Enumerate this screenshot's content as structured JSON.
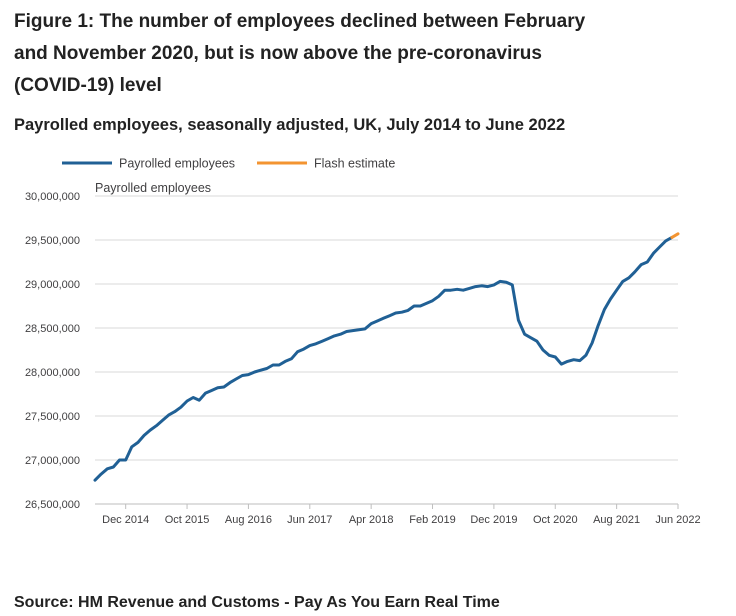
{
  "header": {
    "title": "Figure 1: The number of employees declined between February and November 2020, but is now above the pre-coronavirus (COVID-19) level",
    "subtitle": "Payrolled employees, seasonally adjusted, UK, July 2014 to June 2022"
  },
  "footer": {
    "source": "Source: HM Revenue and Customs - Pay As You Earn Real Time"
  },
  "chart_data": {
    "type": "line",
    "title": "Figure 1: The number of employees declined between February and November 2020, but is now above the pre-coronavirus (COVID-19) level",
    "subtitle": "Payrolled employees, seasonally adjusted, UK, July 2014 to June 2022",
    "ylabel": "Payrolled employees",
    "xlabel": "",
    "ylim": [
      26500000,
      30000000
    ],
    "y_ticks": [
      26500000,
      27000000,
      27500000,
      28000000,
      28500000,
      29000000,
      29500000,
      30000000
    ],
    "y_tick_labels": [
      "26,500,000",
      "27,000,000",
      "27,500,000",
      "28,000,000",
      "28,500,000",
      "29,000,000",
      "29,500,000",
      "30,000,000"
    ],
    "x_ticks": [
      "2014-12",
      "2015-10",
      "2016-08",
      "2017-06",
      "2018-04",
      "2019-02",
      "2019-12",
      "2020-10",
      "2021-08",
      "2022-06"
    ],
    "x_tick_labels": [
      "Dec 2014",
      "Oct 2015",
      "Aug 2016",
      "Jun 2017",
      "Apr 2018",
      "Feb 2019",
      "Dec 2019",
      "Oct 2020",
      "Aug 2021",
      "Jun 2022"
    ],
    "x_range": [
      "2014-07",
      "2022-06"
    ],
    "grid": true,
    "legend_position": "top-left",
    "colors": {
      "payrolled": "#206095",
      "flash": "#f39431",
      "grid": "#d9d9d9",
      "axis": "#bebebe",
      "text": "#414042"
    },
    "series": [
      {
        "name": "Payrolled employees",
        "color": "#206095",
        "x": [
          "2014-07",
          "2014-08",
          "2014-09",
          "2014-10",
          "2014-11",
          "2014-12",
          "2015-01",
          "2015-02",
          "2015-03",
          "2015-04",
          "2015-05",
          "2015-06",
          "2015-07",
          "2015-08",
          "2015-09",
          "2015-10",
          "2015-11",
          "2015-12",
          "2016-01",
          "2016-02",
          "2016-03",
          "2016-04",
          "2016-05",
          "2016-06",
          "2016-07",
          "2016-08",
          "2016-09",
          "2016-10",
          "2016-11",
          "2016-12",
          "2017-01",
          "2017-02",
          "2017-03",
          "2017-04",
          "2017-05",
          "2017-06",
          "2017-07",
          "2017-08",
          "2017-09",
          "2017-10",
          "2017-11",
          "2017-12",
          "2018-01",
          "2018-02",
          "2018-03",
          "2018-04",
          "2018-05",
          "2018-06",
          "2018-07",
          "2018-08",
          "2018-09",
          "2018-10",
          "2018-11",
          "2018-12",
          "2019-01",
          "2019-02",
          "2019-03",
          "2019-04",
          "2019-05",
          "2019-06",
          "2019-07",
          "2019-08",
          "2019-09",
          "2019-10",
          "2019-11",
          "2019-12",
          "2020-01",
          "2020-02",
          "2020-03",
          "2020-04",
          "2020-05",
          "2020-06",
          "2020-07",
          "2020-08",
          "2020-09",
          "2020-10",
          "2020-11",
          "2020-12",
          "2021-01",
          "2021-02",
          "2021-03",
          "2021-04",
          "2021-05",
          "2021-06",
          "2021-07",
          "2021-08",
          "2021-09",
          "2021-10",
          "2021-11",
          "2021-12",
          "2022-01",
          "2022-02",
          "2022-03",
          "2022-04",
          "2022-05"
        ],
        "values": [
          26770000,
          26840000,
          26900000,
          26920000,
          27000000,
          27000000,
          27150000,
          27200000,
          27280000,
          27340000,
          27390000,
          27450000,
          27510000,
          27550000,
          27600000,
          27670000,
          27710000,
          27680000,
          27760000,
          27790000,
          27820000,
          27830000,
          27880000,
          27920000,
          27960000,
          27970000,
          28000000,
          28020000,
          28040000,
          28080000,
          28080000,
          28120000,
          28150000,
          28230000,
          28260000,
          28300000,
          28320000,
          28350000,
          28380000,
          28410000,
          28430000,
          28460000,
          28470000,
          28480000,
          28490000,
          28550000,
          28580000,
          28610000,
          28640000,
          28670000,
          28680000,
          28700000,
          28750000,
          28750000,
          28780000,
          28810000,
          28860000,
          28930000,
          28930000,
          28940000,
          28930000,
          28950000,
          28970000,
          28980000,
          28970000,
          28990000,
          29030000,
          29020000,
          28990000,
          28590000,
          28430000,
          28390000,
          28350000,
          28250000,
          28190000,
          28170000,
          28090000,
          28120000,
          28140000,
          28130000,
          28190000,
          28330000,
          28530000,
          28710000,
          28830000,
          28930000,
          29030000,
          29070000,
          29140000,
          29220000,
          29250000,
          29350000,
          29420000,
          29490000,
          29530000
        ]
      },
      {
        "name": "Flash estimate",
        "color": "#f39431",
        "x": [
          "2022-05",
          "2022-06"
        ],
        "values": [
          29530000,
          29570000
        ]
      }
    ]
  }
}
